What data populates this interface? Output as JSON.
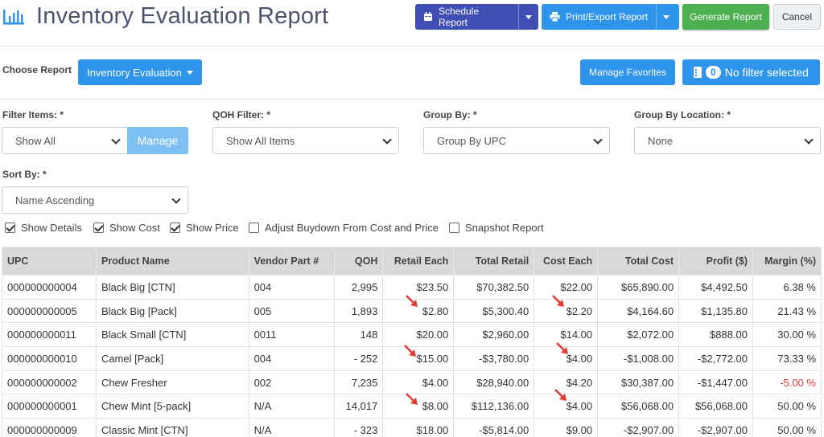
{
  "header": {
    "title": "Inventory Evaluation Report",
    "schedule_label": "Schedule Report",
    "print_label": "Print/Export Report",
    "generate_label": "Generate Report",
    "cancel_label": "Cancel"
  },
  "toolbar": {
    "choose_label": "Choose Report",
    "report_label": "Inventory Evaluation",
    "favorites_label": "Manage Favorites",
    "filter_count": "0",
    "filter_label": "No filter selected"
  },
  "filters": {
    "filter_items_label": "Filter Items: *",
    "filter_items_value": "Show All",
    "manage_label": "Manage",
    "qoh_label": "QOH Filter: *",
    "qoh_value": "Show All Items",
    "group_by_label": "Group By: *",
    "group_by_value": "Group By UPC",
    "group_loc_label": "Group By Location: *",
    "group_loc_value": "None",
    "sort_by_label": "Sort By: *",
    "sort_by_value": "Name Ascending"
  },
  "options": [
    {
      "label": "Show Details",
      "checked": true
    },
    {
      "label": "Show Cost",
      "checked": true
    },
    {
      "label": "Show Price",
      "checked": true
    },
    {
      "label": "Adjust Buydown From Cost and Price",
      "checked": false
    },
    {
      "label": "Snapshot Report",
      "checked": false
    }
  ],
  "table": {
    "columns": [
      "UPC",
      "Product Name",
      "Vendor Part #",
      "QOH",
      "Retail Each",
      "Total Retail",
      "Cost Each",
      "Total Cost",
      "Profit ($)",
      "Margin (%)"
    ],
    "rows": [
      [
        "000000000004",
        "Black Big [CTN]",
        "004",
        "2,995",
        "$23.50",
        "$70,382.50",
        "$22.00",
        "$65,890.00",
        "$4,492.50",
        "6.38 %"
      ],
      [
        "000000000005",
        "Black Big [Pack]",
        "005",
        "1,893",
        "$2.80",
        "$5,300.40",
        "$2.20",
        "$4,164.60",
        "$1,135.80",
        "21.43 %"
      ],
      [
        "000000000011",
        "Black Small [CTN]",
        "0011",
        "148",
        "$20.00",
        "$2,960.00",
        "$14.00",
        "$2,072.00",
        "$888.00",
        "30.00 %"
      ],
      [
        "000000000010",
        "Camel [Pack]",
        "004",
        "- 252",
        "$15.00",
        "-$3,780.00",
        "$4.00",
        "-$1,008.00",
        "-$2,772.00",
        "73.33 %"
      ],
      [
        "000000000002",
        "Chew Fresher",
        "002",
        "7,235",
        "$4.00",
        "$28,940.00",
        "$4.20",
        "$30,387.00",
        "-$1,447.00",
        "-5.00 %"
      ],
      [
        "000000000001",
        "Chew Mint [5-pack]",
        "N/A",
        "14,017",
        "$8.00",
        "$112,136.00",
        "$4.00",
        "$56,068.00",
        "$56,068.00",
        "50.00 %"
      ],
      [
        "000000000009",
        "Classic Mint [CTN]",
        "N/A",
        "- 323",
        "$18.00",
        "-$5,814.00",
        "$9.00",
        "-$2,907.00",
        "-$2,907.00",
        "50.00 %"
      ]
    ]
  },
  "colors": {
    "primary": "#2f95ec",
    "schedule": "#3f4fb3",
    "generate": "#4caf50",
    "negative_margin": "#e53935",
    "annotation_arrow": "#e53935"
  }
}
